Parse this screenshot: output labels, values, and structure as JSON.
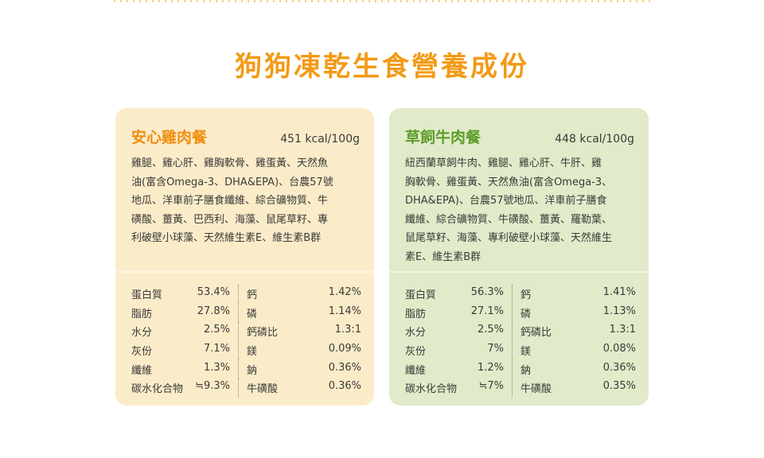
{
  "page_title": "狗狗凍乾生食營養成份",
  "cards": [
    {
      "name": "安心雞肉餐",
      "kcal": "451 kcal/100g",
      "ingredient_lines": [
        "雞腿、雞心肝、雞胸軟骨、雞蛋黃、天然魚",
        "油(富含Omega-3、DHA&EPA)、台農57號",
        "地瓜、洋車前子膳食纖維、綜合礦物質、牛",
        "磺酸、薑黃、巴西利、海藻、鼠尾草籽、專",
        "利破壁小球藻、天然維生素E、維生素B群"
      ],
      "nutrients": [
        {
          "a_name": "蛋白質",
          "a_val": "53.4%",
          "b_name": "鈣",
          "b_val": "1.42%"
        },
        {
          "a_name": "脂肪",
          "a_val": "27.8%",
          "b_name": "磷",
          "b_val": "1.14%"
        },
        {
          "a_name": "水分",
          "a_val": "2.5%",
          "b_name": "鈣磷比",
          "b_val": "1.3:1"
        },
        {
          "a_name": "灰份",
          "a_val": "7.1%",
          "b_name": "鎂",
          "b_val": "0.09%"
        },
        {
          "a_name": "纖維",
          "a_val": "1.3%",
          "b_name": "鈉",
          "b_val": "0.36%"
        },
        {
          "a_name": "碳水化合物",
          "a_val": "≒9.3%",
          "b_name": "牛磺酸",
          "b_val": "0.36%"
        }
      ]
    },
    {
      "name": "草飼牛肉餐",
      "kcal": "448 kcal/100g",
      "ingredient_lines": [
        "紐西蘭草飼牛肉、雞腿、雞心肝、牛肝、雞",
        "胸軟骨、雞蛋黃、天然魚油(富含Omega-3、",
        "DHA&EPA)、台農57號地瓜、洋車前子膳食",
        "纖維、綜合礦物質、牛磺酸、薑黃、羅勒葉、",
        "鼠尾草籽、海藻、專利破壁小球藻、天然維生",
        "素E、維生素B群"
      ],
      "nutrients": [
        {
          "a_name": "蛋白質",
          "a_val": "56.3%",
          "b_name": "鈣",
          "b_val": "1.41%"
        },
        {
          "a_name": "脂肪",
          "a_val": "27.1%",
          "b_name": "磷",
          "b_val": "1.13%"
        },
        {
          "a_name": "水分",
          "a_val": "2.5%",
          "b_name": "鈣磷比",
          "b_val": "1.3:1"
        },
        {
          "a_name": "灰份",
          "a_val": "7%",
          "b_name": "鎂",
          "b_val": "0.08%"
        },
        {
          "a_name": "纖維",
          "a_val": "1.2%",
          "b_name": "鈉",
          "b_val": "0.36%"
        },
        {
          "a_name": "碳水化合物",
          "a_val": "≒7%",
          "b_name": "牛磺酸",
          "b_val": "0.35%"
        }
      ]
    }
  ],
  "colors": {
    "title": "#f39a16",
    "chicken_accent": "#ef8f12",
    "beef_accent": "#5f9c2a",
    "chicken_bg": "#fbecc9",
    "beef_bg": "#e1ebc9"
  }
}
